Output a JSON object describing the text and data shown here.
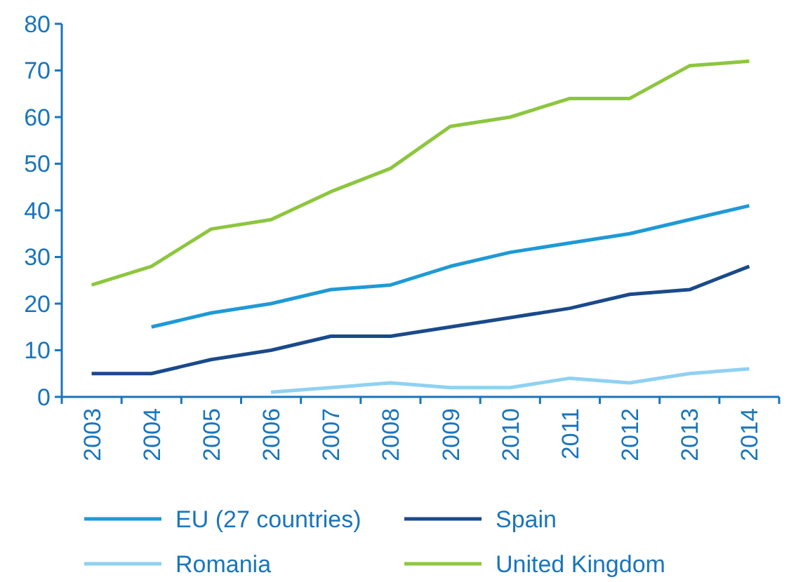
{
  "chart_data": {
    "type": "line",
    "categories": [
      "2003",
      "2004",
      "2005",
      "2006",
      "2007",
      "2008",
      "2009",
      "2010",
      "2011",
      "2012",
      "2013",
      "2014"
    ],
    "ylim": [
      0,
      80
    ],
    "yticks": [
      0,
      10,
      20,
      30,
      40,
      50,
      60,
      70,
      80
    ],
    "grid": false,
    "legend": "bottom",
    "marker": "none",
    "line_style": "solid",
    "series": [
      {
        "name": "EU (27 countries)",
        "color": "#1e9ad6",
        "values": [
          null,
          15,
          18,
          20,
          23,
          24,
          28,
          31,
          33,
          35,
          38,
          41
        ]
      },
      {
        "name": "Spain",
        "color": "#1a4a8a",
        "values": [
          5,
          5,
          8,
          10,
          13,
          13,
          15,
          17,
          19,
          22,
          23,
          28
        ]
      },
      {
        "name": "Romania",
        "color": "#8fd1f2",
        "values": [
          null,
          null,
          null,
          1,
          2,
          3,
          2,
          2,
          4,
          3,
          5,
          6
        ]
      },
      {
        "name": "United Kingdom",
        "color": "#8dc63f",
        "values": [
          24,
          28,
          36,
          38,
          44,
          49,
          58,
          60,
          64,
          64,
          71,
          72
        ]
      }
    ]
  }
}
